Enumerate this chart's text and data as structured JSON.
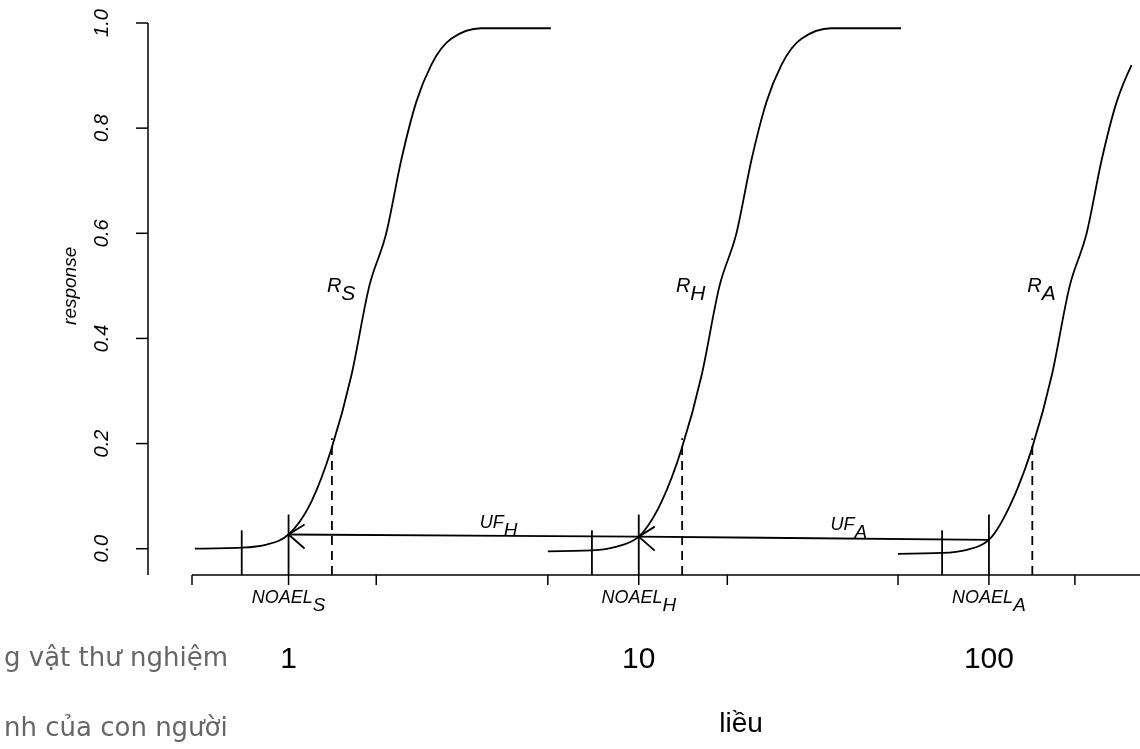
{
  "chart_data": {
    "type": "line",
    "xlabel": "liều",
    "ylabel": "response",
    "log": "x",
    "xlim": [
      0.53,
      270
    ],
    "ylim": [
      -0.05,
      1.0
    ],
    "xticks": [
      {
        "value": 0.53,
        "label": null
      },
      {
        "value": 1,
        "label": "1"
      },
      {
        "value": 1.78,
        "label": null
      },
      {
        "value": 5.5,
        "label": null
      },
      {
        "value": 10,
        "label": "10"
      },
      {
        "value": 17.9,
        "label": null
      },
      {
        "value": 55,
        "label": null
      },
      {
        "value": 100,
        "label": "100"
      },
      {
        "value": 176,
        "label": null
      }
    ],
    "yticks": [
      {
        "value": 0,
        "label": "0.0"
      },
      {
        "value": 0.2,
        "label": "0.2"
      },
      {
        "value": 0.4,
        "label": "0.4"
      },
      {
        "value": 0.6,
        "label": "0.6"
      },
      {
        "value": 0.8,
        "label": "0.8"
      },
      {
        "value": 1,
        "label": "1.0"
      }
    ],
    "grid": false,
    "series": [
      {
        "name": "R$_{S}$",
        "color": "#000000",
        "x": [
          0.54,
          0.735,
          0.866,
          1,
          1.163,
          1.326,
          1.512,
          1.701,
          1.901,
          2.099,
          2.316,
          2.554,
          2.913,
          3.545,
          5.61
        ],
        "values": [
          0,
          0.002,
          0.008,
          0.027,
          0.09,
          0.19,
          0.33,
          0.5,
          0.6,
          0.74,
          0.85,
          0.92,
          0.97,
          0.99,
          0.99
        ]
      },
      {
        "name": "R$_{H}$",
        "color": "#000000",
        "x": [
          5.5,
          7.35,
          8.66,
          10,
          11.63,
          13.26,
          15.12,
          17.01,
          19.01,
          20.99,
          23.16,
          25.54,
          29.13,
          35.45,
          56.1
        ],
        "values": [
          -0.005,
          -0.003,
          0.004,
          0.023,
          0.09,
          0.19,
          0.33,
          0.5,
          0.6,
          0.74,
          0.85,
          0.92,
          0.97,
          0.99,
          0.99
        ]
      },
      {
        "name": "R$_{A}$",
        "color": "#000000",
        "x": [
          55,
          73.5,
          86.6,
          100,
          116.3,
          132.6,
          151.2,
          170.1,
          190.1,
          209.9,
          231.6,
          255.4
        ],
        "values": [
          -0.01,
          -0.008,
          -0.002,
          0.017,
          0.09,
          0.19,
          0.33,
          0.5,
          0.6,
          0.74,
          0.85,
          0.92
        ]
      },
      {
        "color": "#000000",
        "x": [
          0.735,
          0.735
        ],
        "values": [
          -0.05,
          0.035
        ]
      },
      {
        "color": "#000000",
        "x": [
          7.35,
          7.35
        ],
        "values": [
          -0.05,
          0.035
        ]
      },
      {
        "color": "#000000",
        "x": [
          73.5,
          73.5
        ],
        "values": [
          -0.05,
          0.035
        ]
      },
      {
        "color": "#000000",
        "x": [
          1,
          1
        ],
        "values": [
          -0.05,
          0.065
        ]
      },
      {
        "color": "#000000",
        "x": [
          10,
          10
        ],
        "values": [
          -0.05,
          0.065
        ]
      },
      {
        "color": "#000000",
        "x": [
          100,
          100
        ],
        "values": [
          -0.05,
          0.065
        ]
      },
      {
        "color": "#000000",
        "line_style": "dashed",
        "x": [
          1.33,
          1.33
        ],
        "values": [
          -0.05,
          0.21
        ]
      },
      {
        "color": "#000000",
        "line_style": "dashed",
        "x": [
          13.3,
          13.3
        ],
        "values": [
          -0.05,
          0.21
        ]
      },
      {
        "color": "#000000",
        "line_style": "dashed",
        "x": [
          133,
          133
        ],
        "values": [
          -0.05,
          0.21
        ]
      }
    ],
    "annotations": [
      "UF$_{H}$",
      "UF$_{A}$",
      {
        "text": "NOAEL$_{S}$",
        "x": 1,
        "y": -0.05
      },
      {
        "text": "NOAEL$_{H}$",
        "x": 10,
        "y": -0.05
      },
      {
        "text": "NOAEL$_{A}$",
        "x": 100,
        "y": -0.05
      },
      "g vật thư nghiệm",
      "nh của con người"
    ]
  }
}
